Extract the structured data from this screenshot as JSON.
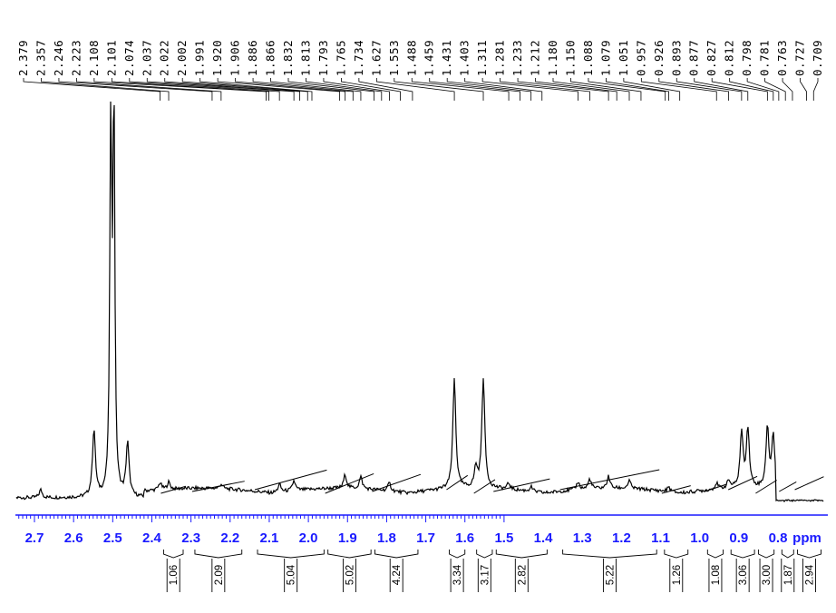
{
  "chart_data": {
    "type": "line",
    "title": "",
    "xlabel": "ppm",
    "ylabel": "",
    "xlim": [
      2.73,
      0.65
    ],
    "x_reversed": true,
    "x_ticks": [
      "2.7",
      "2.6",
      "2.5",
      "2.4",
      "2.3",
      "2.2",
      "2.1",
      "2.0",
      "1.9",
      "1.8",
      "1.7",
      "1.6",
      "1.5",
      "1.4",
      "1.3",
      "1.2",
      "1.1",
      "1.0",
      "0.9",
      "0.8"
    ],
    "peak_labels": [
      "2.379",
      "2.357",
      "2.246",
      "2.223",
      "2.108",
      "2.101",
      "2.074",
      "2.037",
      "2.022",
      "2.002",
      "1.991",
      "1.920",
      "1.906",
      "1.886",
      "1.866",
      "1.832",
      "1.813",
      "1.793",
      "1.765",
      "1.734",
      "1.627",
      "1.553",
      "1.488",
      "1.459",
      "1.431",
      "1.403",
      "1.311",
      "1.281",
      "1.233",
      "1.212",
      "1.180",
      "1.150",
      "1.088",
      "1.079",
      "1.051",
      "0.957",
      "0.926",
      "0.893",
      "0.877",
      "0.827",
      "0.812",
      "0.798",
      "0.781",
      "0.763",
      "0.727",
      "0.709"
    ],
    "integrals": [
      {
        "from": 2.37,
        "to": 2.32,
        "value": "1.06"
      },
      {
        "from": 2.29,
        "to": 2.17,
        "value": "2.09"
      },
      {
        "from": 2.13,
        "to": 1.96,
        "value": "5.04"
      },
      {
        "from": 1.95,
        "to": 1.84,
        "value": "5.02"
      },
      {
        "from": 1.83,
        "to": 1.72,
        "value": "4.24"
      },
      {
        "from": 1.64,
        "to": 1.6,
        "value": "3.34"
      },
      {
        "from": 1.57,
        "to": 1.53,
        "value": "3.17"
      },
      {
        "from": 1.52,
        "to": 1.39,
        "value": "2.82"
      },
      {
        "from": 1.35,
        "to": 1.11,
        "value": "5.22"
      },
      {
        "from": 1.09,
        "to": 1.03,
        "value": "1.26"
      },
      {
        "from": 0.98,
        "to": 0.94,
        "value": "1.08"
      },
      {
        "from": 0.92,
        "to": 0.86,
        "value": "3.06"
      },
      {
        "from": 0.85,
        "to": 0.81,
        "value": "3.00"
      },
      {
        "from": 0.79,
        "to": 0.76,
        "value": "1.87"
      },
      {
        "from": 0.75,
        "to": 0.69,
        "value": "2.94"
      }
    ],
    "spectrum_peaks": [
      {
        "ppm": 2.684,
        "height": 0.02
      },
      {
        "ppm": 2.548,
        "height": 0.17
      },
      {
        "ppm": 2.505,
        "height": 1.0
      },
      {
        "ppm": 2.497,
        "height": 1.0
      },
      {
        "ppm": 2.462,
        "height": 0.135
      },
      {
        "ppm": 2.379,
        "height": 0.018
      },
      {
        "ppm": 2.357,
        "height": 0.018
      },
      {
        "ppm": 2.223,
        "height": 0.012
      },
      {
        "ppm": 2.074,
        "height": 0.02
      },
      {
        "ppm": 2.037,
        "height": 0.025
      },
      {
        "ppm": 1.906,
        "height": 0.035
      },
      {
        "ppm": 1.866,
        "height": 0.03
      },
      {
        "ppm": 1.793,
        "height": 0.02
      },
      {
        "ppm": 1.627,
        "height": 0.28
      },
      {
        "ppm": 1.572,
        "height": 0.05
      },
      {
        "ppm": 1.553,
        "height": 0.28
      },
      {
        "ppm": 1.488,
        "height": 0.015
      },
      {
        "ppm": 1.431,
        "height": 0.012
      },
      {
        "ppm": 1.311,
        "height": 0.02
      },
      {
        "ppm": 1.281,
        "height": 0.025
      },
      {
        "ppm": 1.233,
        "height": 0.03
      },
      {
        "ppm": 1.18,
        "height": 0.02
      },
      {
        "ppm": 1.079,
        "height": 0.012
      },
      {
        "ppm": 0.957,
        "height": 0.015
      },
      {
        "ppm": 0.926,
        "height": 0.02
      },
      {
        "ppm": 0.893,
        "height": 0.14
      },
      {
        "ppm": 0.877,
        "height": 0.15
      },
      {
        "ppm": 0.827,
        "height": 0.15
      },
      {
        "ppm": 0.812,
        "height": 0.13
      },
      {
        "ppm": 0.781,
        "height": 0.04
      },
      {
        "ppm": 0.753,
        "height": 0.115
      },
      {
        "ppm": 0.737,
        "height": 0.11
      }
    ],
    "colors": {
      "axis": "#1a1aff",
      "trace": "#000000",
      "integral_bracket": "#000000"
    }
  }
}
